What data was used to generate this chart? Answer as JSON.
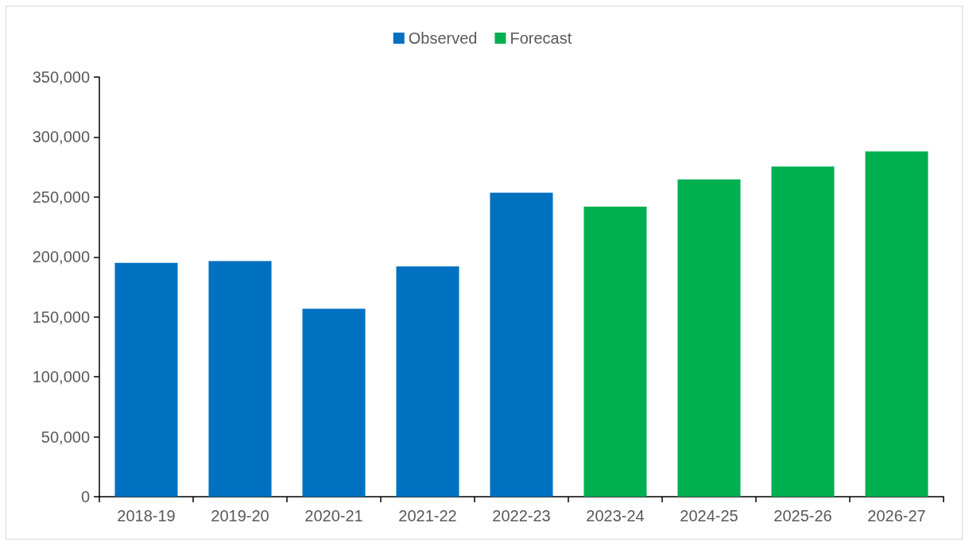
{
  "chart_data": {
    "type": "bar",
    "categories": [
      "2018-19",
      "2019-20",
      "2020-21",
      "2021-22",
      "2022-23",
      "2023-24",
      "2024-25",
      "2025-26",
      "2026-27"
    ],
    "series": [
      {
        "name": "Observed",
        "color": "#0070c0",
        "values": [
          195000,
          196500,
          156800,
          192000,
          253500,
          null,
          null,
          null,
          null
        ]
      },
      {
        "name": "Forecast",
        "color": "#00b050",
        "values": [
          null,
          null,
          null,
          null,
          null,
          242000,
          264700,
          275400,
          288000
        ]
      }
    ],
    "ylim": [
      0,
      350000
    ],
    "yticks": [
      0,
      {
        "value": 50000,
        "label": "50,000"
      },
      {
        "value": 100000,
        "label": "100,000"
      },
      {
        "value": 150000,
        "label": "150,000"
      },
      {
        "value": 200000,
        "label": "200,000"
      },
      {
        "value": 250000,
        "label": "250,000"
      },
      {
        "value": 300000,
        "label": "300,000"
      },
      {
        "value": 350000,
        "label": "350,000"
      }
    ],
    "grid": false,
    "legend": "top"
  }
}
